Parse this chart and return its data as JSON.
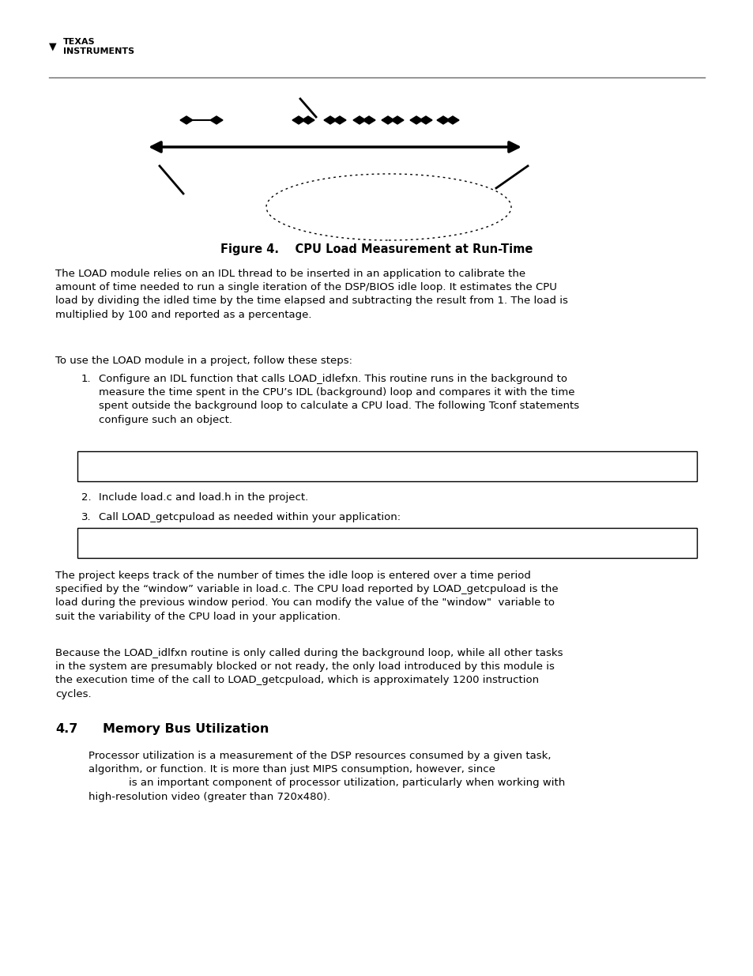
{
  "bg_color": "#ffffff",
  "text_color": "#000000",
  "page_width": 9.54,
  "page_height": 12.35,
  "dpi": 100,
  "title_text": "Figure 4.    CPU Load Measurement at Run-Time",
  "section_header": "4.7    Memory Bus Utilization",
  "para1": "The LOAD module relies on an IDL thread to be inserted in an application to calibrate the\namount of time needed to run a single iteration of the DSP/BIOS idle loop. It estimates the CPU\nload by dividing the idled time by the time elapsed and subtracting the result from 1. The load is\nmultiplied by 100 and reported as a percentage.",
  "para2": "To use the LOAD module in a project, follow these steps:",
  "item1": "Configure an IDL function that calls LOAD_idlefxn. This routine runs in the background to\nmeasure the time spent in the CPU’s IDL (background) loop and compares it with the time\nspent outside the background loop to calculate a CPU load. The following Tconf statements\nconfigure such an object.",
  "item2": "Include load.c and load.h in the project.",
  "item3": "Call LOAD_getcpuload as needed within your application:",
  "para3": "The project keeps track of the number of times the idle loop is entered over a time period\nspecified by the “window” variable in load.c. The CPU load reported by LOAD_getcpuload is the\nload during the previous window period. You can modify the value of the \"window\"  variable to\nsuit the variability of the CPU load in your application.",
  "para4": "Because the LOAD_idlfxn routine is only called during the background loop, while all other tasks\nin the system are presumably blocked or not ready, the only load introduced by this module is\nthe execution time of the call to LOAD_getcpuload, which is approximately 1200 instruction\ncycles.",
  "para5": "Processor utilization is a measurement of the DSP resources consumed by a given task,\nalgorithm, or function. It is more than just MIPS consumption, however, since\n            is an important component of processor utilization, particularly when working with\nhigh-resolution video (greater than 720x480)."
}
